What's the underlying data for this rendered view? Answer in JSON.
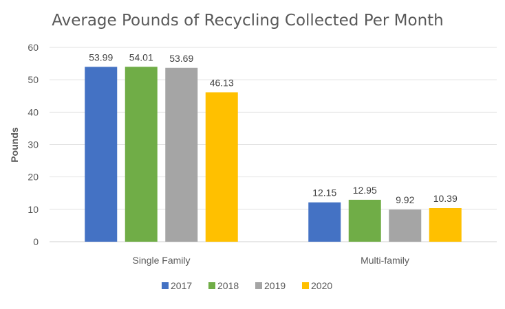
{
  "chart_data": {
    "type": "bar",
    "title": "Average Pounds of Recycling Collected Per Month",
    "xlabel": "",
    "ylabel": "Pounds",
    "ylim": [
      0,
      60
    ],
    "yticks": [
      0,
      10,
      20,
      30,
      40,
      50,
      60
    ],
    "grid": true,
    "legend_position": "bottom",
    "categories": [
      "Single Family",
      "Multi-family"
    ],
    "series": [
      {
        "name": "2017",
        "color": "#4472C4",
        "values": [
          53.99,
          12.15
        ],
        "labels": [
          "53.99",
          "12.15"
        ]
      },
      {
        "name": "2018",
        "color": "#70AD47",
        "values": [
          54.01,
          12.95
        ],
        "labels": [
          "54.01",
          "12.95"
        ]
      },
      {
        "name": "2019",
        "color": "#A5A5A5",
        "values": [
          53.69,
          9.92
        ],
        "labels": [
          "53.69",
          "9.92"
        ]
      },
      {
        "name": "2020",
        "color": "#FFC000",
        "values": [
          46.13,
          10.39
        ],
        "labels": [
          "46.13",
          "10.39"
        ]
      }
    ]
  }
}
